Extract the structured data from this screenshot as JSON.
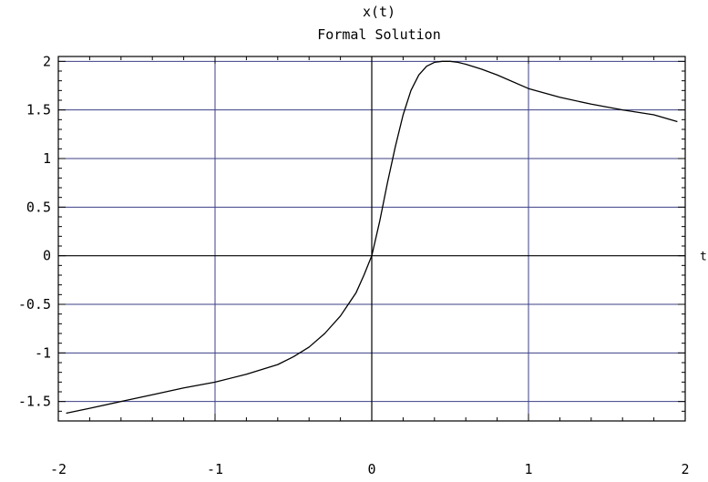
{
  "chart_data": {
    "type": "line",
    "title": "x(t)",
    "subtitle": "Formal Solution",
    "xlabel": "t",
    "ylabel": "",
    "xlim": [
      -2,
      2
    ],
    "ylim": [
      -1.7,
      2.05
    ],
    "xticks": [
      -2,
      -1,
      0,
      1,
      2
    ],
    "xtick_labels": [
      "-2",
      "-1",
      "0",
      "1",
      "2"
    ],
    "yticks": [
      -1.5,
      -1,
      -0.5,
      0,
      0.5,
      1,
      1.5,
      2
    ],
    "ytick_labels": [
      "-1.5",
      "-1",
      "-0.5",
      "0",
      "0.5",
      "1",
      "1.5",
      "2"
    ],
    "grid": true,
    "colors": {
      "grid": "#3c3f86",
      "curve": "#000000",
      "frame": "#000000"
    },
    "series": [
      {
        "name": "",
        "x": [
          -1.95,
          -1.8,
          -1.6,
          -1.4,
          -1.2,
          -1.0,
          -0.8,
          -0.6,
          -0.5,
          -0.4,
          -0.3,
          -0.2,
          -0.15,
          -0.1,
          -0.05,
          0,
          0.05,
          0.1,
          0.15,
          0.2,
          0.25,
          0.3,
          0.35,
          0.4,
          0.45,
          0.5,
          0.55,
          0.6,
          0.7,
          0.8,
          1.0,
          1.2,
          1.4,
          1.6,
          1.8,
          1.95
        ],
        "y": [
          -1.62,
          -1.57,
          -1.5,
          -1.43,
          -1.36,
          -1.3,
          -1.22,
          -1.12,
          -1.04,
          -0.94,
          -0.8,
          -0.62,
          -0.5,
          -0.38,
          -0.2,
          0.0,
          0.35,
          0.75,
          1.12,
          1.45,
          1.7,
          1.86,
          1.95,
          1.99,
          2.0,
          2.0,
          1.99,
          1.97,
          1.92,
          1.86,
          1.72,
          1.63,
          1.56,
          1.5,
          1.45,
          1.38
        ]
      }
    ]
  }
}
